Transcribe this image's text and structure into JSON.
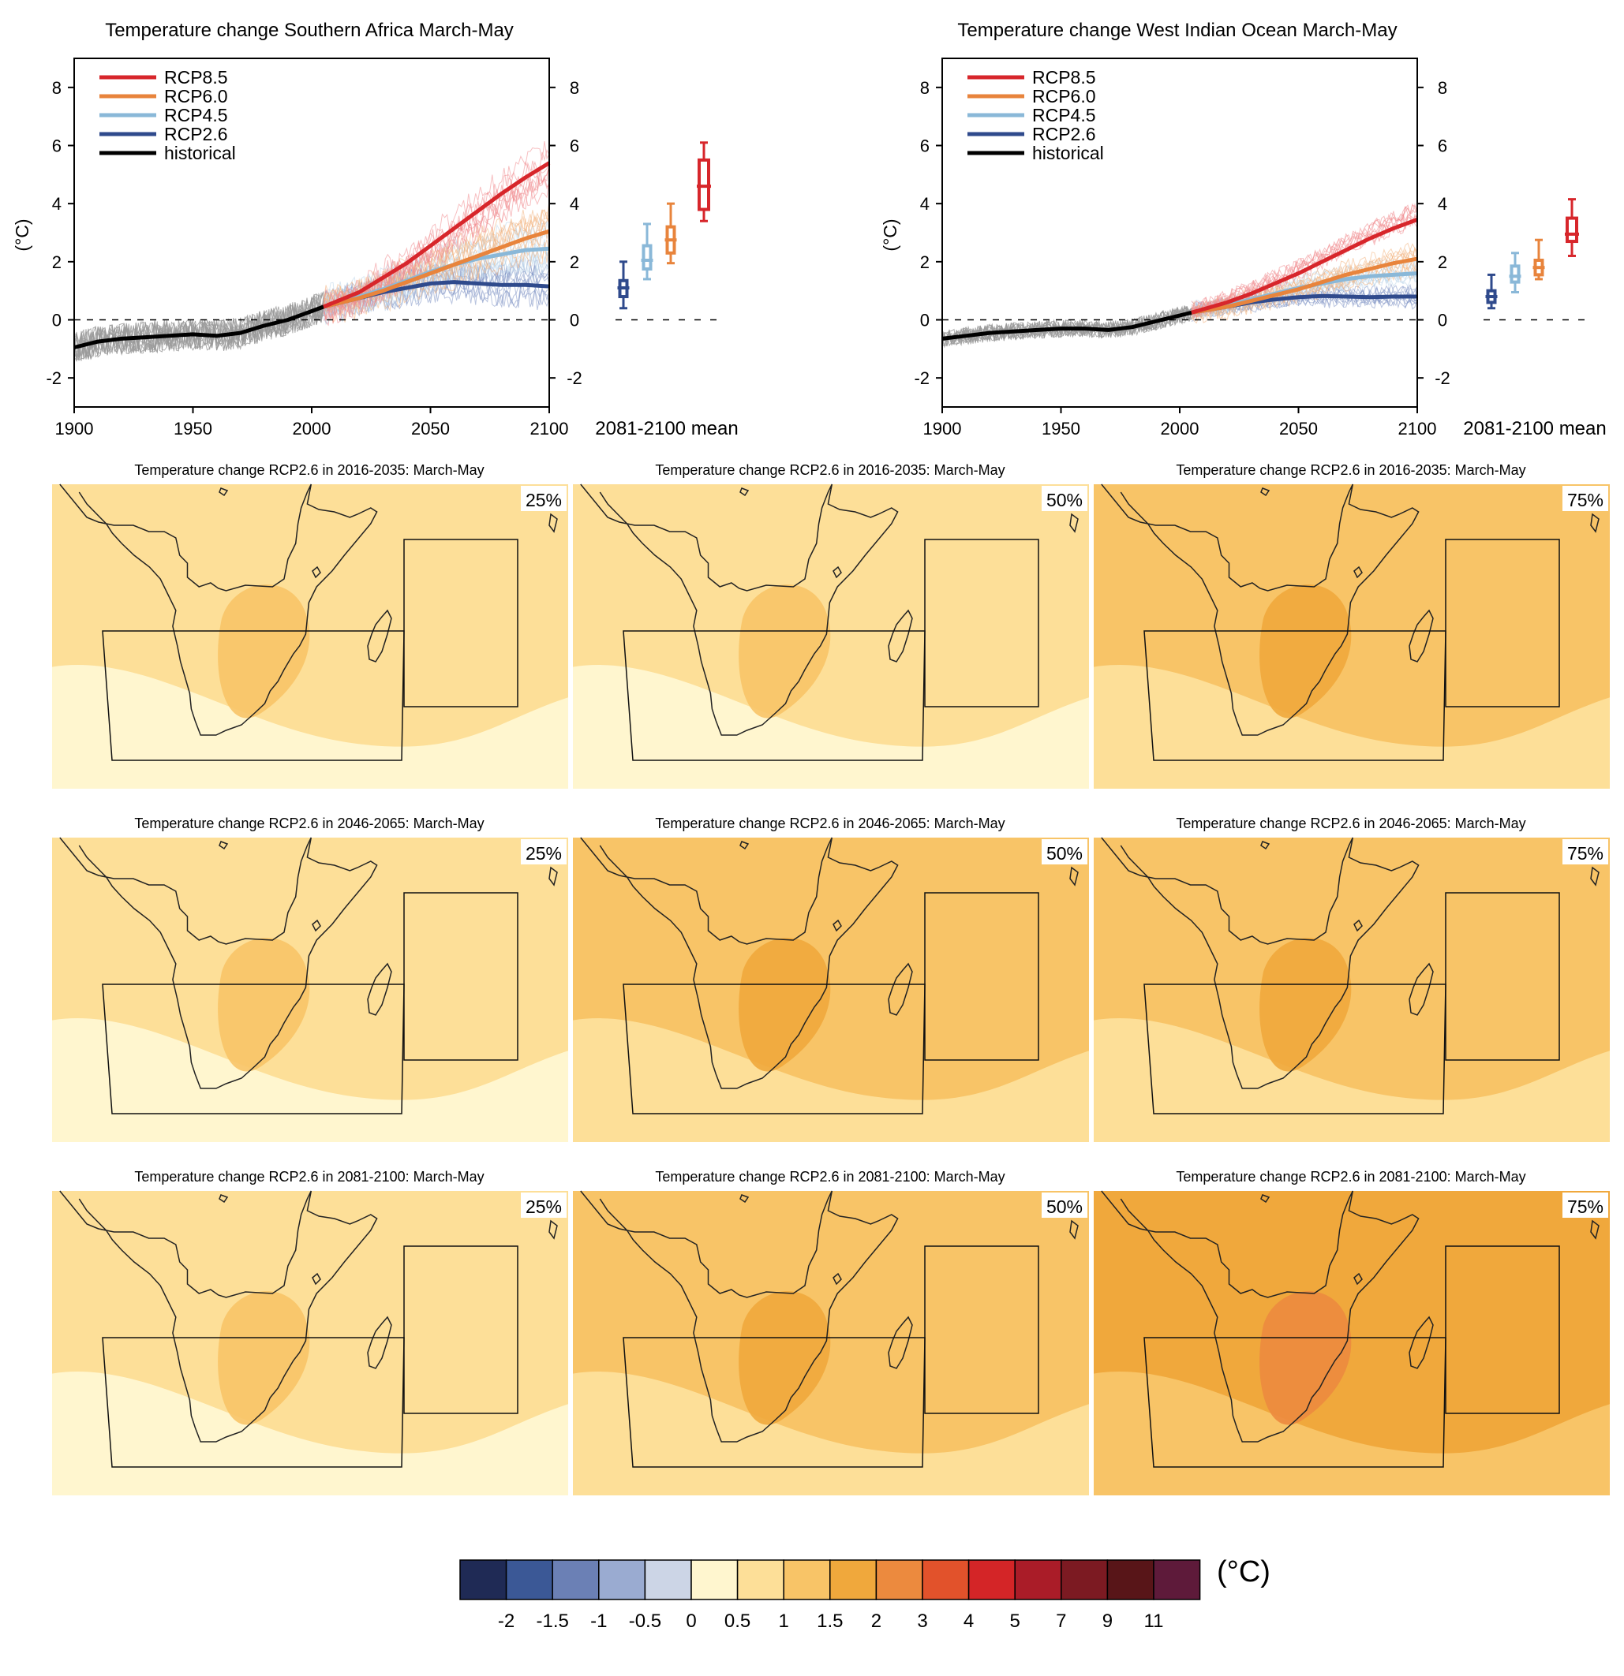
{
  "colors": {
    "rcp85": "#d7262b",
    "rcp60": "#e8843c",
    "rcp45": "#8ab8d8",
    "rcp26": "#2f4a8c",
    "historical": "#000000",
    "ensemble_grey": "#9a9a9a",
    "land_outline": "#222222"
  },
  "chart_data": [
    {
      "type": "line",
      "title": "Temperature change Southern Africa March-May",
      "ylabel": "(°C)",
      "xlim": [
        1900,
        2100
      ],
      "ylim": [
        -3,
        9
      ],
      "x_ticks": [
        "1900",
        "1950",
        "2000",
        "2050",
        "2100"
      ],
      "y_ticks": [
        "-2",
        "0",
        "2",
        "4",
        "6",
        "8"
      ],
      "legend_position": "top-left",
      "legend": [
        "RCP8.5",
        "RCP6.0",
        "RCP4.5",
        "RCP2.6",
        "historical"
      ],
      "series": [
        {
          "name": "historical",
          "x": [
            1900,
            1910,
            1920,
            1930,
            1940,
            1950,
            1960,
            1970,
            1980,
            1990,
            2000,
            2005
          ],
          "y": [
            -0.95,
            -0.75,
            -0.65,
            -0.6,
            -0.55,
            -0.5,
            -0.55,
            -0.45,
            -0.2,
            0.0,
            0.3,
            0.45
          ]
        },
        {
          "name": "RCP2.6",
          "x": [
            2005,
            2020,
            2030,
            2040,
            2050,
            2060,
            2070,
            2080,
            2090,
            2100
          ],
          "y": [
            0.45,
            0.75,
            0.95,
            1.1,
            1.25,
            1.3,
            1.25,
            1.2,
            1.2,
            1.15
          ]
        },
        {
          "name": "RCP4.5",
          "x": [
            2005,
            2020,
            2030,
            2040,
            2050,
            2060,
            2070,
            2080,
            2090,
            2100
          ],
          "y": [
            0.45,
            0.8,
            1.05,
            1.35,
            1.65,
            1.9,
            2.1,
            2.25,
            2.4,
            2.45
          ]
        },
        {
          "name": "RCP6.0",
          "x": [
            2005,
            2020,
            2030,
            2040,
            2050,
            2060,
            2070,
            2080,
            2090,
            2100
          ],
          "y": [
            0.45,
            0.75,
            1.0,
            1.3,
            1.6,
            1.9,
            2.2,
            2.5,
            2.8,
            3.05
          ]
        },
        {
          "name": "RCP8.5",
          "x": [
            2005,
            2020,
            2030,
            2040,
            2050,
            2060,
            2070,
            2080,
            2090,
            2100
          ],
          "y": [
            0.45,
            0.95,
            1.45,
            1.95,
            2.55,
            3.15,
            3.75,
            4.35,
            4.9,
            5.4
          ]
        }
      ],
      "box_label": "2081-2100 mean",
      "boxes": [
        {
          "name": "RCP2.6",
          "min": 0.4,
          "q1": 0.8,
          "median": 1.1,
          "q3": 1.35,
          "max": 2.0
        },
        {
          "name": "RCP4.5",
          "min": 1.4,
          "q1": 1.75,
          "median": 2.05,
          "q3": 2.55,
          "max": 3.3
        },
        {
          "name": "RCP6.0",
          "min": 1.95,
          "q1": 2.3,
          "median": 2.75,
          "q3": 3.2,
          "max": 4.0
        },
        {
          "name": "RCP8.5",
          "min": 3.4,
          "q1": 3.8,
          "median": 4.6,
          "q3": 5.5,
          "max": 6.1
        }
      ]
    },
    {
      "type": "line",
      "title": "Temperature change West Indian Ocean March-May",
      "ylabel": "(°C)",
      "xlim": [
        1900,
        2100
      ],
      "ylim": [
        -3,
        9
      ],
      "x_ticks": [
        "1900",
        "1950",
        "2000",
        "2050",
        "2100"
      ],
      "y_ticks": [
        "-2",
        "0",
        "2",
        "4",
        "6",
        "8"
      ],
      "legend_position": "top-left",
      "legend": [
        "RCP8.5",
        "RCP6.0",
        "RCP4.5",
        "RCP2.6",
        "historical"
      ],
      "series": [
        {
          "name": "historical",
          "x": [
            1900,
            1910,
            1920,
            1930,
            1940,
            1950,
            1960,
            1970,
            1980,
            1990,
            2000,
            2005
          ],
          "y": [
            -0.65,
            -0.55,
            -0.45,
            -0.4,
            -0.35,
            -0.3,
            -0.3,
            -0.35,
            -0.25,
            -0.05,
            0.15,
            0.25
          ]
        },
        {
          "name": "RCP2.6",
          "x": [
            2005,
            2020,
            2030,
            2040,
            2050,
            2060,
            2070,
            2080,
            2090,
            2100
          ],
          "y": [
            0.25,
            0.45,
            0.6,
            0.7,
            0.78,
            0.82,
            0.8,
            0.78,
            0.8,
            0.8
          ]
        },
        {
          "name": "RCP4.5",
          "x": [
            2005,
            2020,
            2030,
            2040,
            2050,
            2060,
            2070,
            2080,
            2090,
            2100
          ],
          "y": [
            0.25,
            0.5,
            0.7,
            0.9,
            1.1,
            1.25,
            1.4,
            1.5,
            1.55,
            1.6
          ]
        },
        {
          "name": "RCP6.0",
          "x": [
            2005,
            2020,
            2030,
            2040,
            2050,
            2060,
            2070,
            2080,
            2090,
            2100
          ],
          "y": [
            0.25,
            0.45,
            0.65,
            0.85,
            1.05,
            1.3,
            1.55,
            1.75,
            1.95,
            2.1
          ]
        },
        {
          "name": "RCP8.5",
          "x": [
            2005,
            2020,
            2030,
            2040,
            2050,
            2060,
            2070,
            2080,
            2090,
            2100
          ],
          "y": [
            0.25,
            0.6,
            0.9,
            1.25,
            1.6,
            2.0,
            2.4,
            2.8,
            3.15,
            3.45
          ]
        }
      ],
      "box_label": "2081-2100 mean",
      "boxes": [
        {
          "name": "RCP2.6",
          "min": 0.4,
          "q1": 0.6,
          "median": 0.8,
          "q3": 1.0,
          "max": 1.55
        },
        {
          "name": "RCP4.5",
          "min": 0.95,
          "q1": 1.3,
          "median": 1.5,
          "q3": 1.85,
          "max": 2.3
        },
        {
          "name": "RCP6.0",
          "min": 1.4,
          "q1": 1.55,
          "median": 1.8,
          "q3": 2.05,
          "max": 2.75
        },
        {
          "name": "RCP8.5",
          "min": 2.2,
          "q1": 2.7,
          "median": 2.95,
          "q3": 3.5,
          "max": 4.15
        }
      ]
    },
    {
      "type": "heatmap",
      "rows": [
        {
          "title": "Temperature change RCP2.6 in 2016-2035: March-May",
          "period": "2016-2035"
        },
        {
          "title": "Temperature change RCP2.6 in 2046-2065: March-May",
          "period": "2046-2065"
        },
        {
          "title": "Temperature change RCP2.6 in 2081-2100: March-May",
          "period": "2081-2100"
        }
      ],
      "percentiles": [
        "25%",
        "50%",
        "75%"
      ],
      "levels": [
        [
          1,
          1,
          2
        ],
        [
          1,
          2,
          2
        ],
        [
          1,
          2,
          3
        ]
      ],
      "levels_note_values": "level index into colorbar bins: 0 = 0-0.5, 1 = 0.5-1, 2 = 1-1.5, 3 = 1.5-2"
    }
  ],
  "colorbar": {
    "colors": [
      "#1f2a55",
      "#3b5896",
      "#6b80b5",
      "#9aabd1",
      "#ccd5e6",
      "#fff6cf",
      "#fddf98",
      "#f8c467",
      "#f0a83c",
      "#ec8a3e",
      "#e2522b",
      "#d42527",
      "#aa1c28",
      "#7c1a22",
      "#581518",
      "#5e1a3a"
    ],
    "labels": [
      "-2",
      "-1.5",
      "-1",
      "-0.5",
      "0",
      "0.5",
      "1",
      "1.5",
      "2",
      "3",
      "4",
      "5",
      "7",
      "9",
      "11"
    ],
    "unit": "(°C)"
  }
}
